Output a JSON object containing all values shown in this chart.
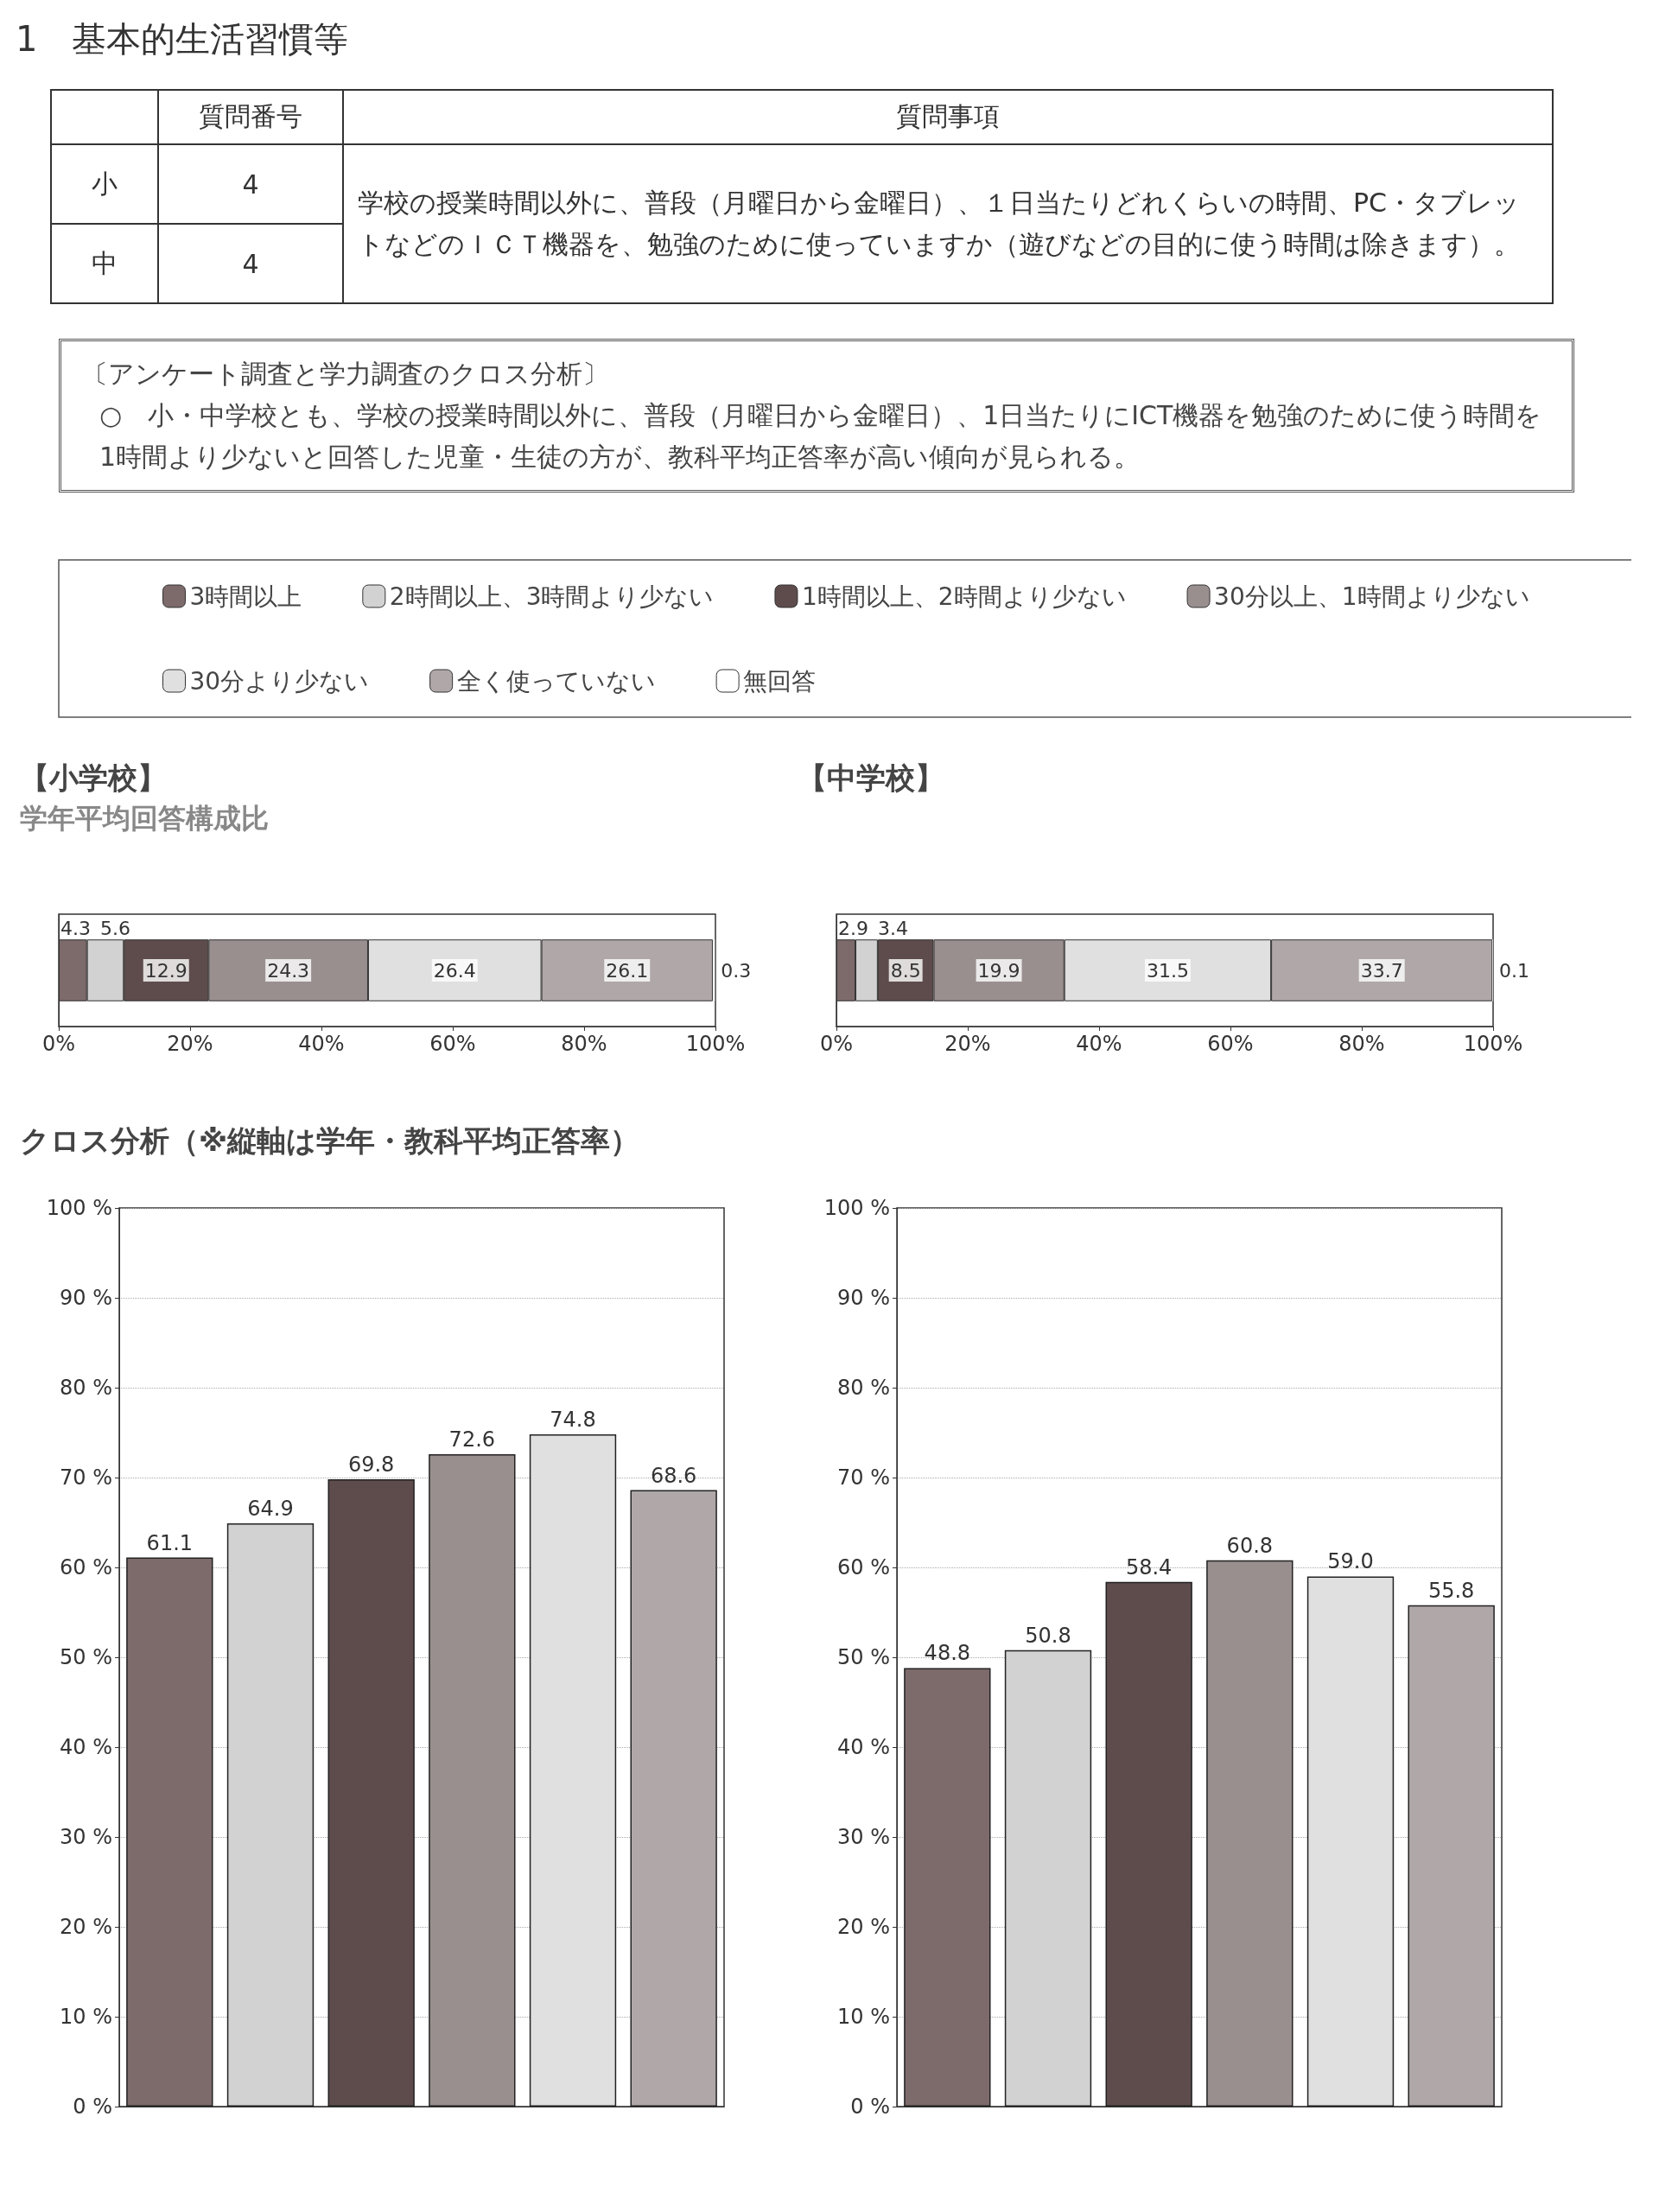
{
  "chart_data": [
    {
      "type": "other",
      "title": "1　基本的生活習慣等",
      "annotations": [
        "質問番号",
        "質問事項",
        "小",
        "4",
        "中",
        "4",
        "学校の授業時間以外に、普段（月曜日から金曜日）、１日当たりどれくらいの時間、PC・タブレットなどのＩＣＴ機器を、勉強のために使っていますか（遊びなどの目的に使う時間は除きます）。",
        "〔アンケート調査と学力調査のクロス分析〕",
        "○　小・中学校とも、学校の授業時間以外に、普段（月曜日から金曜日）、1日当たりにICT機器を勉強のために使う時間を1時間より少ないと回答した児童・生徒の方が、教科平均正答率が高い傾向が見られる。"
      ]
    },
    {
      "type": "bar",
      "orientation": "horizontal",
      "stacked": true,
      "title": "【小学校】",
      "subtitle": "学年平均回答構成比",
      "categories": [
        null
      ],
      "xlim": [
        0,
        100
      ],
      "xticks": [
        {
          "value": 0,
          "label": "0%"
        },
        {
          "value": 20,
          "label": "20%"
        },
        {
          "value": 40,
          "label": "40%"
        },
        {
          "value": 60,
          "label": "60%"
        },
        {
          "value": 80,
          "label": "80%"
        },
        {
          "value": 100,
          "label": "100%"
        }
      ],
      "data_labels": true,
      "legend": "top",
      "tick_labels": "x",
      "series": [
        {
          "name": "3時間以上",
          "color": "#7d6a6a",
          "values": [
            4.3
          ]
        },
        {
          "name": "2時間以上、3時間より少ない",
          "color": "#d2d2d2",
          "values": [
            5.6
          ]
        },
        {
          "name": "1時間以上、2時間より少ない",
          "color": "#5e4c4c",
          "values": [
            12.9
          ]
        },
        {
          "name": "30分以上、1時間より少ない",
          "color": "#9a8f8f",
          "values": [
            24.3
          ]
        },
        {
          "name": "30分より少ない",
          "color": "#e0e0e0",
          "values": [
            26.4
          ]
        },
        {
          "name": "全く使っていない",
          "color": "#b0a8a8",
          "values": [
            26.1
          ]
        },
        {
          "name": "無回答",
          "color": "#ffffff",
          "values": [
            0.3
          ]
        }
      ]
    },
    {
      "type": "bar",
      "orientation": "horizontal",
      "stacked": true,
      "title": "【中学校】",
      "categories": [
        null
      ],
      "xlim": [
        0,
        100
      ],
      "xticks": [
        {
          "value": 0,
          "label": "0%"
        },
        {
          "value": 20,
          "label": "20%"
        },
        {
          "value": 40,
          "label": "40%"
        },
        {
          "value": 60,
          "label": "60%"
        },
        {
          "value": 80,
          "label": "80%"
        },
        {
          "value": 100,
          "label": "100%"
        }
      ],
      "data_labels": true,
      "tick_labels": "x",
      "series": [
        {
          "color": "#7d6a6a",
          "values": [
            2.9
          ]
        },
        {
          "color": "#d2d2d2",
          "values": [
            3.4
          ]
        },
        {
          "color": "#5e4c4c",
          "values": [
            8.5
          ]
        },
        {
          "color": "#9a8f8f",
          "values": [
            19.9
          ]
        },
        {
          "color": "#e0e0e0",
          "values": [
            31.5
          ]
        },
        {
          "color": "#b0a8a8",
          "values": [
            33.7
          ]
        },
        {
          "color": "#ffffff",
          "values": [
            0.1
          ]
        }
      ]
    },
    {
      "type": "bar",
      "title": "クロス分析（※縦軸は学年・教科平均正答率）",
      "categories": [
        null,
        null,
        null,
        null,
        null,
        null
      ],
      "values": [
        61.1,
        64.9,
        69.8,
        72.6,
        74.8,
        68.6
      ],
      "value_labels": [
        "61.1",
        "64.9",
        "69.8",
        "72.6",
        "74.8",
        "68.6"
      ],
      "colors": [
        "#7d6a6a",
        "#d2d2d2",
        "#5e4c4c",
        "#9a8f8f",
        "#e0e0e0",
        "#b0a8a8"
      ],
      "ylim": [
        0,
        100
      ],
      "yticks": [
        {
          "value": 0,
          "label": "0 %"
        },
        {
          "value": 10,
          "label": "10 %"
        },
        {
          "value": 20,
          "label": "20 %"
        },
        {
          "value": 30,
          "label": "30 %"
        },
        {
          "value": 40,
          "label": "40 %"
        },
        {
          "value": 50,
          "label": "50 %"
        },
        {
          "value": 60,
          "label": "60 %"
        },
        {
          "value": 70,
          "label": "70 %"
        },
        {
          "value": 80,
          "label": "80 %"
        },
        {
          "value": 90,
          "label": "90 %"
        },
        {
          "value": 100,
          "label": "100 %"
        }
      ],
      "grid": "y",
      "tick_labels": "y"
    },
    {
      "type": "bar",
      "categories": [
        null,
        null,
        null,
        null,
        null,
        null
      ],
      "values": [
        48.8,
        50.8,
        58.4,
        60.8,
        59.0,
        55.8
      ],
      "value_labels": [
        "48.8",
        "50.8",
        "58.4",
        "60.8",
        "59.0",
        "55.8"
      ],
      "colors": [
        "#7d6a6a",
        "#d2d2d2",
        "#5e4c4c",
        "#9a8f8f",
        "#e0e0e0",
        "#b0a8a8"
      ],
      "ylim": [
        0,
        100
      ],
      "yticks": [
        {
          "value": 0,
          "label": "0 %"
        },
        {
          "value": 10,
          "label": "10 %"
        },
        {
          "value": 20,
          "label": "20 %"
        },
        {
          "value": 30,
          "label": "30 %"
        },
        {
          "value": 40,
          "label": "40 %"
        },
        {
          "value": 50,
          "label": "50 %"
        },
        {
          "value": 60,
          "label": "60 %"
        },
        {
          "value": 70,
          "label": "70 %"
        },
        {
          "value": 80,
          "label": "80 %"
        },
        {
          "value": 90,
          "label": "90 %"
        },
        {
          "value": 100,
          "label": "100 %"
        }
      ],
      "grid": "y",
      "tick_labels": "y"
    }
  ]
}
